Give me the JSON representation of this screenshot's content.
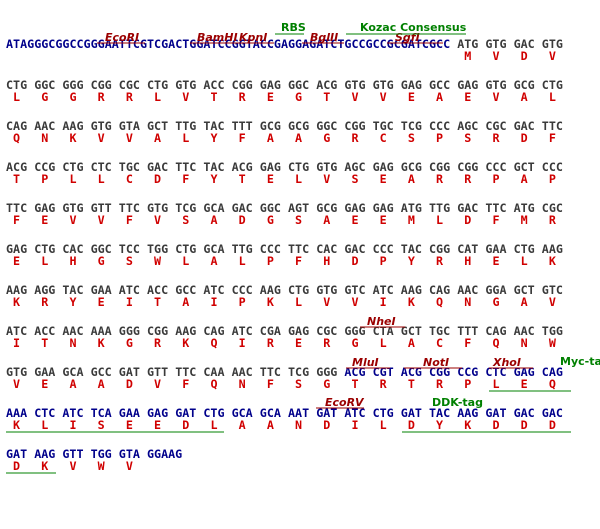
{
  "colors": {
    "vector": "#00008b",
    "orf": "#3a3a3a",
    "aa": "#d00000",
    "site": "#9b0000",
    "feature": "#008000"
  },
  "rows": [
    {
      "prefix": "ATAGGGCGGCCGGGAATTCGTCGACTGGATCCGGTACCGAGGAGATCTGCCGCCGCGATCGCC",
      "segments": [
        {
          "style": "orf",
          "codons": [
            "ATG",
            "GTG",
            "GAC",
            "GTG"
          ]
        }
      ],
      "aa": [
        "M",
        "V",
        "D",
        "V"
      ]
    },
    {
      "segments": [
        {
          "style": "orf",
          "codons": [
            "CTG",
            "GGC",
            "GGG",
            "CGG",
            "CGC",
            "CTG",
            "GTG",
            "ACC",
            "CGG",
            "GAG",
            "GGC",
            "ACG",
            "GTG",
            "GTG",
            "GAG",
            "GCC",
            "GAG",
            "GTG",
            "GCG",
            "CTG"
          ]
        }
      ],
      "aa": [
        "L",
        "G",
        "G",
        "R",
        "R",
        "L",
        "V",
        "T",
        "R",
        "E",
        "G",
        "T",
        "V",
        "V",
        "E",
        "A",
        "E",
        "V",
        "A",
        "L"
      ]
    },
    {
      "segments": [
        {
          "style": "orf",
          "codons": [
            "CAG",
            "AAC",
            "AAG",
            "GTG",
            "GTA",
            "GCT",
            "TTG",
            "TAC",
            "TTT",
            "GCG",
            "GCG",
            "GGC",
            "CGG",
            "TGC",
            "TCG",
            "CCC",
            "AGC",
            "CGC",
            "GAC",
            "TTC"
          ]
        }
      ],
      "aa": [
        "Q",
        "N",
        "K",
        "V",
        "V",
        "A",
        "L",
        "Y",
        "F",
        "A",
        "A",
        "G",
        "R",
        "C",
        "S",
        "P",
        "S",
        "R",
        "D",
        "F"
      ]
    },
    {
      "segments": [
        {
          "style": "orf",
          "codons": [
            "ACG",
            "CCG",
            "CTG",
            "CTC",
            "TGC",
            "GAC",
            "TTC",
            "TAC",
            "ACG",
            "GAG",
            "CTG",
            "GTG",
            "AGC",
            "GAG",
            "GCG",
            "CGG",
            "CGG",
            "CCC",
            "GCT",
            "CCC"
          ]
        }
      ],
      "aa": [
        "T",
        "P",
        "L",
        "L",
        "C",
        "D",
        "F",
        "Y",
        "T",
        "E",
        "L",
        "V",
        "S",
        "E",
        "A",
        "R",
        "R",
        "P",
        "A",
        "P"
      ]
    },
    {
      "segments": [
        {
          "style": "orf",
          "codons": [
            "TTC",
            "GAG",
            "GTG",
            "GTT",
            "TTC",
            "GTG",
            "TCG",
            "GCA",
            "GAC",
            "GGC",
            "AGT",
            "GCG",
            "GAG",
            "GAG",
            "ATG",
            "TTG",
            "GAC",
            "TTC",
            "ATG",
            "CGC"
          ]
        }
      ],
      "aa": [
        "F",
        "E",
        "V",
        "V",
        "F",
        "V",
        "S",
        "A",
        "D",
        "G",
        "S",
        "A",
        "E",
        "E",
        "M",
        "L",
        "D",
        "F",
        "M",
        "R"
      ]
    },
    {
      "segments": [
        {
          "style": "orf",
          "codons": [
            "GAG",
            "CTG",
            "CAC",
            "GGC",
            "TCC",
            "TGG",
            "CTG",
            "GCA",
            "TTG",
            "CCC",
            "TTC",
            "CAC",
            "GAC",
            "CCC",
            "TAC",
            "CGG",
            "CAT",
            "GAA",
            "CTG",
            "AAG"
          ]
        }
      ],
      "aa": [
        "E",
        "L",
        "H",
        "G",
        "S",
        "W",
        "L",
        "A",
        "L",
        "P",
        "F",
        "H",
        "D",
        "P",
        "Y",
        "R",
        "H",
        "E",
        "L",
        "K"
      ]
    },
    {
      "segments": [
        {
          "style": "orf",
          "codons": [
            "AAG",
            "AGG",
            "TAC",
            "GAA",
            "ATC",
            "ACC",
            "GCC",
            "ATC",
            "CCC",
            "AAG",
            "CTG",
            "GTG",
            "GTC",
            "ATC",
            "AAG",
            "CAG",
            "AAC",
            "GGA",
            "GCT",
            "GTC"
          ]
        }
      ],
      "aa": [
        "K",
        "R",
        "Y",
        "E",
        "I",
        "T",
        "A",
        "I",
        "P",
        "K",
        "L",
        "V",
        "V",
        "I",
        "K",
        "Q",
        "N",
        "G",
        "A",
        "V"
      ]
    },
    {
      "segments": [
        {
          "style": "orf",
          "codons": [
            "ATC",
            "ACC",
            "AAC",
            "AAA",
            "GGG",
            "CGG",
            "AAG",
            "CAG",
            "ATC",
            "CGA",
            "GAG",
            "CGC",
            "GGG",
            "CTA",
            "GCT",
            "TGC",
            "TTT",
            "CAG",
            "AAC",
            "TGG"
          ]
        }
      ],
      "aa": [
        "I",
        "T",
        "N",
        "K",
        "G",
        "R",
        "K",
        "Q",
        "I",
        "R",
        "E",
        "R",
        "G",
        "L",
        "A",
        "C",
        "F",
        "Q",
        "N",
        "W"
      ]
    },
    {
      "segments": [
        {
          "style": "orf",
          "codons": [
            "GTG",
            "GAA",
            "GCA",
            "GCC",
            "GAT",
            "GTT",
            "TTC",
            "CAA",
            "AAC",
            "TTC",
            "TCG",
            "GGG"
          ]
        },
        {
          "style": "vector",
          "codons": [
            "ACG",
            "CGT",
            "ACG",
            "CGG",
            "CCG",
            "CTC",
            "GAG",
            "CAG"
          ]
        }
      ],
      "aa": [
        "V",
        "E",
        "A",
        "A",
        "D",
        "V",
        "F",
        "Q",
        "N",
        "F",
        "S",
        "G",
        "T",
        "R",
        "T",
        "R",
        "P",
        "L",
        "E",
        "Q"
      ]
    },
    {
      "segments": [
        {
          "style": "vector",
          "codons": [
            "AAA",
            "CTC",
            "ATC",
            "TCA",
            "GAA",
            "GAG",
            "GAT",
            "CTG",
            "GCA",
            "GCA",
            "AAT",
            "GAT",
            "ATC",
            "CTG",
            "GAT",
            "TAC",
            "AAG",
            "GAT",
            "GAC",
            "GAC"
          ]
        }
      ],
      "aa": [
        "K",
        "L",
        "I",
        "S",
        "E",
        "E",
        "D",
        "L",
        "A",
        "A",
        "N",
        "D",
        "I",
        "L",
        "D",
        "Y",
        "K",
        "D",
        "D",
        "D"
      ]
    },
    {
      "segments": [
        {
          "style": "vector",
          "codons": [
            "GAT",
            "AAG",
            "GTT",
            "TGG",
            "GTA",
            "GGAAG"
          ]
        }
      ],
      "aa": [
        "D",
        "K",
        "V",
        "W",
        "V"
      ]
    }
  ],
  "sites": [
    "EcoRI",
    "BamHI",
    "KpnI",
    "BglII",
    "SgfI",
    "NheI",
    "MluI",
    "NotI",
    "XhoI",
    "EcoRV"
  ],
  "features": [
    "RBS",
    "Kozac Consensus",
    "Myc-tag",
    "DDK-tag"
  ]
}
